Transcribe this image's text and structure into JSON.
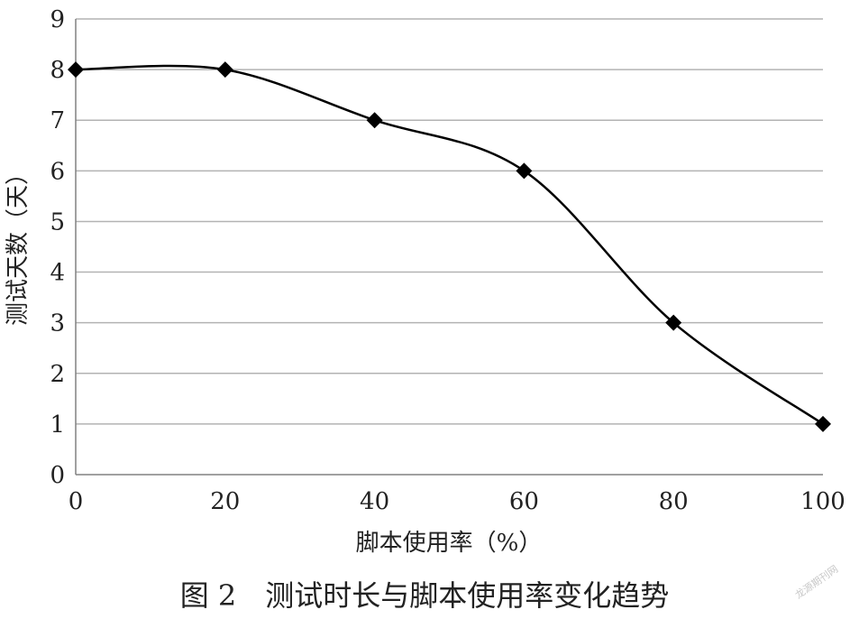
{
  "chart_data": {
    "type": "line",
    "title": "",
    "xlabel": "脚本使用率（%）",
    "ylabel": "测试天数（天）",
    "x": [
      0,
      20,
      40,
      60,
      80,
      100
    ],
    "series": [
      {
        "values": [
          8,
          8,
          7,
          6,
          3,
          1
        ]
      }
    ],
    "xlim": [
      0,
      100
    ],
    "ylim": [
      0,
      9
    ],
    "xticks": [
      "0",
      "20",
      "40",
      "60",
      "80",
      "100"
    ],
    "yticks": [
      "0",
      "1",
      "2",
      "3",
      "4",
      "5",
      "6",
      "7",
      "8",
      "9"
    ],
    "grid": "horizontal",
    "line_smooth": true,
    "marker": "diamond",
    "colors": {
      "line": "#000000",
      "grid": "#b3b3b3",
      "axis": "#808080"
    }
  },
  "caption": "图 2　测试时长与脚本使用率变化趋势",
  "watermark": "龙源期刊网"
}
